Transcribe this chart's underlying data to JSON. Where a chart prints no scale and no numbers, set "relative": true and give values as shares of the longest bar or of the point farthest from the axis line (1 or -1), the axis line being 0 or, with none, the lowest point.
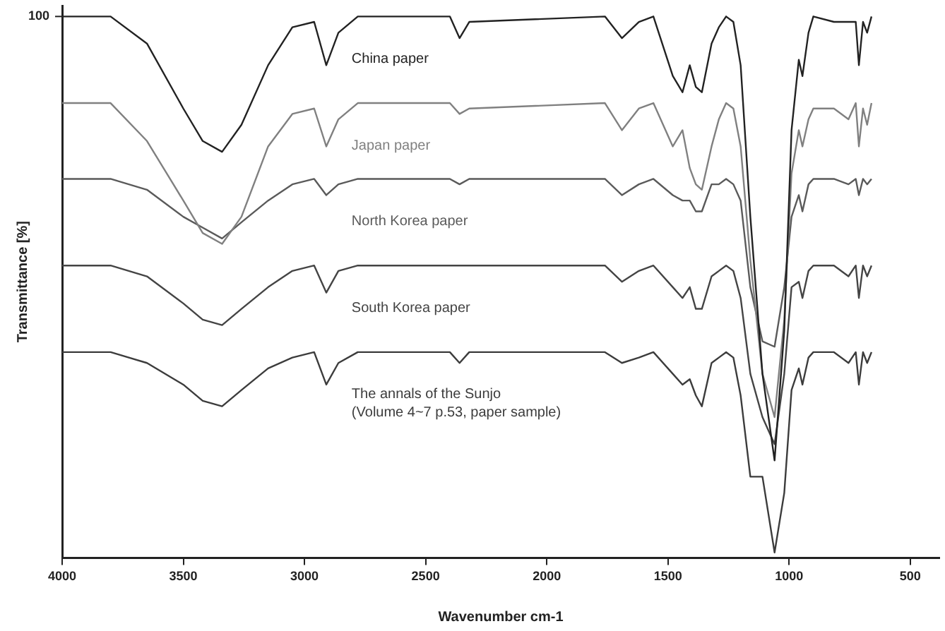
{
  "chart_data": {
    "type": "line",
    "relative": true,
    "xlabel": "Wavenumber cm-1",
    "ylabel": "Transmittance [%]",
    "annotations": [
      "100"
    ],
    "x": [
      4000,
      3800,
      3650,
      3500,
      3420,
      3340,
      3260,
      3150,
      3050,
      2960,
      2910,
      2860,
      2780,
      2400,
      2360,
      2320,
      1760,
      1690,
      1620,
      1560,
      1480,
      1440,
      1410,
      1385,
      1360,
      1320,
      1290,
      1260,
      1230,
      1200,
      1160,
      1110,
      1060,
      1020,
      990,
      960,
      945,
      920,
      900,
      815,
      755,
      725,
      712,
      695,
      678,
      660
    ],
    "xlim": [
      4000,
      380
    ],
    "xticks": [
      4000,
      3500,
      3000,
      2500,
      2000,
      1500,
      1000,
      500
    ],
    "grid": false,
    "legend": false,
    "marker": "none",
    "line_style": "solid",
    "series": [
      {
        "name": "China paper",
        "color": "#222222",
        "values": [
          1.0,
          1.0,
          0.95,
          0.83,
          0.77,
          0.75,
          0.8,
          0.91,
          0.98,
          0.99,
          0.91,
          0.97,
          1.0,
          1.0,
          0.96,
          0.99,
          1.0,
          0.96,
          0.99,
          1.0,
          0.89,
          0.86,
          0.91,
          0.87,
          0.86,
          0.95,
          0.98,
          1.0,
          0.99,
          0.91,
          0.63,
          0.34,
          0.18,
          0.42,
          0.79,
          0.92,
          0.89,
          0.97,
          1.0,
          0.99,
          0.99,
          0.99,
          0.91,
          0.99,
          0.97,
          1.0
        ]
      },
      {
        "name": "Japan paper",
        "color": "#808080",
        "values": [
          0.84,
          0.84,
          0.77,
          0.66,
          0.6,
          0.58,
          0.63,
          0.76,
          0.82,
          0.83,
          0.76,
          0.81,
          0.84,
          0.84,
          0.82,
          0.83,
          0.84,
          0.79,
          0.83,
          0.84,
          0.76,
          0.79,
          0.72,
          0.69,
          0.68,
          0.76,
          0.81,
          0.84,
          0.83,
          0.76,
          0.55,
          0.34,
          0.26,
          0.44,
          0.71,
          0.79,
          0.76,
          0.81,
          0.83,
          0.83,
          0.81,
          0.84,
          0.76,
          0.83,
          0.8,
          0.84
        ]
      },
      {
        "name": "North Korea paper",
        "color": "#5a5a5a",
        "values": [
          0.7,
          0.7,
          0.68,
          0.63,
          0.61,
          0.59,
          0.62,
          0.66,
          0.69,
          0.7,
          0.67,
          0.69,
          0.7,
          0.7,
          0.69,
          0.7,
          0.7,
          0.67,
          0.69,
          0.7,
          0.67,
          0.66,
          0.66,
          0.64,
          0.64,
          0.69,
          0.69,
          0.7,
          0.69,
          0.66,
          0.5,
          0.4,
          0.39,
          0.5,
          0.63,
          0.67,
          0.64,
          0.69,
          0.7,
          0.7,
          0.69,
          0.7,
          0.67,
          0.7,
          0.69,
          0.7
        ]
      },
      {
        "name": "South Korea paper",
        "color": "#444444",
        "values": [
          0.54,
          0.54,
          0.52,
          0.47,
          0.44,
          0.43,
          0.46,
          0.5,
          0.53,
          0.54,
          0.49,
          0.53,
          0.54,
          0.54,
          0.54,
          0.54,
          0.54,
          0.51,
          0.53,
          0.54,
          0.5,
          0.48,
          0.5,
          0.46,
          0.46,
          0.52,
          0.53,
          0.54,
          0.53,
          0.48,
          0.34,
          0.26,
          0.21,
          0.34,
          0.5,
          0.51,
          0.48,
          0.53,
          0.54,
          0.54,
          0.52,
          0.54,
          0.48,
          0.54,
          0.52,
          0.54
        ]
      },
      {
        "name": "The annals of the Sunjo\n(Volume 4~7 p.53, paper sample)",
        "color": "#3c3c3c",
        "values": [
          0.38,
          0.38,
          0.36,
          0.32,
          0.29,
          0.28,
          0.31,
          0.35,
          0.37,
          0.38,
          0.32,
          0.36,
          0.38,
          0.38,
          0.36,
          0.38,
          0.38,
          0.36,
          0.37,
          0.38,
          0.34,
          0.32,
          0.33,
          0.3,
          0.28,
          0.36,
          0.37,
          0.38,
          0.37,
          0.3,
          0.15,
          0.15,
          0.01,
          0.12,
          0.31,
          0.35,
          0.32,
          0.37,
          0.38,
          0.38,
          0.36,
          0.38,
          0.32,
          0.38,
          0.36,
          0.38
        ]
      }
    ]
  }
}
